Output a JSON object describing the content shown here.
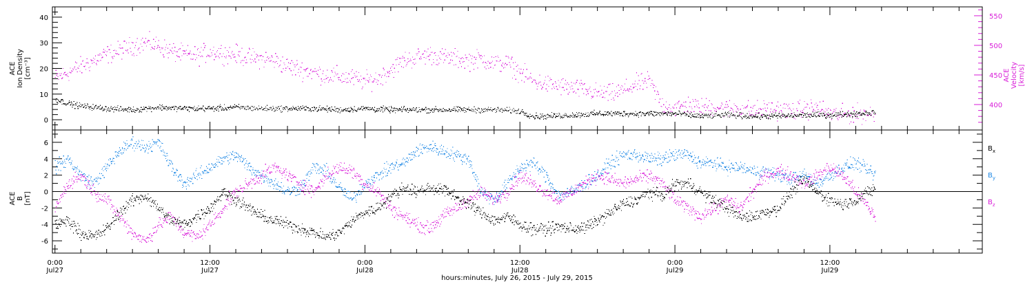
{
  "xaxis": {
    "title": "hours:minutes, July 26, 2015 - July 29, 2015",
    "ticks": [
      {
        "h": 0,
        "time": "0:00",
        "day": "Jul27"
      },
      {
        "h": 12,
        "time": "12:00",
        "day": "Jul27"
      },
      {
        "h": 24,
        "time": "0:00",
        "day": "Jul28"
      },
      {
        "h": 36,
        "time": "12:00",
        "day": "Jul28"
      },
      {
        "h": 48,
        "time": "0:00",
        "day": "Jul29"
      },
      {
        "h": 60,
        "time": "12:00",
        "day": "Jul29"
      }
    ]
  },
  "colors": {
    "black": "#000000",
    "magenta": "#d81ad8",
    "blue": "#1e88e5"
  },
  "chart_data": [
    {
      "type": "scatter",
      "panel": "top",
      "xlabel": "hours:minutes, July 26, 2015 - July 29, 2015",
      "xlim": [
        -0.2,
        71.8
      ],
      "ylabel_left": [
        "ACE",
        "Ion Density",
        "[cm⁻³]"
      ],
      "ylim_left": [
        -4,
        44
      ],
      "yticks_left": [
        0,
        10,
        20,
        30,
        40
      ],
      "ylabel_right": [
        "ACE",
        "Velocity",
        "[km/s]"
      ],
      "ylim_right": [
        357,
        565
      ],
      "yticks_right": [
        400,
        450,
        500,
        550
      ],
      "series": [
        {
          "axis": "left",
          "color": "#000000",
          "x": [
            0,
            1,
            2,
            4,
            6,
            7,
            8,
            10,
            12,
            14,
            16,
            18,
            20,
            22,
            24,
            26,
            28,
            30,
            32,
            34,
            36,
            37,
            38,
            40,
            42,
            44,
            46,
            48,
            50,
            52,
            54,
            56,
            58,
            60,
            62,
            63.5
          ],
          "y": [
            8,
            6.5,
            5.5,
            4.5,
            4,
            4.5,
            5,
            4.5,
            4.5,
            5,
            4.5,
            4.5,
            4.5,
            4,
            4.5,
            4,
            4,
            4,
            4,
            4,
            3.5,
            1.5,
            1.5,
            2,
            2.5,
            2.5,
            2.5,
            2.5,
            1.5,
            2,
            1.5,
            1.5,
            2,
            2,
            2.5,
            3
          ]
        },
        {
          "axis": "right",
          "color": "#d81ad8",
          "x": [
            0,
            1,
            2,
            3,
            4,
            5,
            6,
            7,
            8,
            9,
            10,
            11,
            12,
            13,
            14,
            15,
            16,
            17,
            18,
            19,
            20,
            21,
            22,
            23,
            24,
            25,
            26,
            27,
            28,
            29,
            30,
            31,
            32,
            33,
            34,
            35,
            36,
            37,
            38,
            39,
            40,
            41,
            42,
            43,
            44,
            45,
            46,
            47,
            48,
            49,
            50,
            51,
            52,
            53,
            54,
            55,
            56,
            57,
            58,
            59,
            60,
            61,
            62,
            63,
            63.5
          ],
          "y": [
            445,
            455,
            465,
            475,
            485,
            492,
            500,
            505,
            500,
            490,
            485,
            483,
            490,
            488,
            485,
            480,
            478,
            475,
            465,
            460,
            455,
            450,
            448,
            445,
            440,
            445,
            460,
            475,
            480,
            485,
            480,
            478,
            475,
            478,
            470,
            470,
            455,
            440,
            435,
            432,
            428,
            425,
            420,
            418,
            425,
            435,
            440,
            400,
            395,
            400,
            395,
            398,
            393,
            395,
            390,
            393,
            392,
            390,
            392,
            395,
            385,
            383,
            385,
            385,
            385
          ]
        }
      ]
    },
    {
      "type": "scatter",
      "panel": "bottom",
      "xlabel": "hours:minutes, July 26, 2015 - July 29, 2015",
      "xlim": [
        -0.2,
        71.8
      ],
      "ylabel": [
        "ACE",
        "B",
        "[nT]"
      ],
      "ylim": [
        -7.5,
        7.5
      ],
      "yticks": [
        -6,
        -4,
        -2,
        0,
        2,
        4,
        6
      ],
      "zero_line": true,
      "series": [
        {
          "name": "Bx",
          "sub": "x",
          "color": "#000000",
          "x": [
            0,
            1,
            2,
            3,
            4,
            5,
            6,
            7,
            8,
            9,
            10,
            11,
            12,
            13,
            14,
            15,
            16,
            17,
            18,
            19,
            20,
            21,
            22,
            23,
            24,
            25,
            26,
            27,
            28,
            29,
            30,
            31,
            32,
            33,
            34,
            35,
            36,
            37,
            38,
            39,
            40,
            41,
            42,
            43,
            44,
            45,
            46,
            47,
            48,
            49,
            50,
            51,
            52,
            53,
            54,
            55,
            56,
            57,
            58,
            59,
            60,
            61,
            62,
            63,
            63.5
          ],
          "y": [
            -4,
            -3.5,
            -5,
            -5.5,
            -4.5,
            -2.5,
            -1,
            -0.5,
            -2,
            -3.5,
            -4,
            -3,
            -2,
            0,
            -1,
            -2,
            -3,
            -3.5,
            -4,
            -4.5,
            -5,
            -5.5,
            -5,
            -3.5,
            -2.5,
            -2,
            -0.5,
            0.5,
            0,
            0.5,
            0.3,
            -0.5,
            -1.5,
            -2.5,
            -3.5,
            -3,
            -4,
            -4.5,
            -4.5,
            -4.3,
            -4.5,
            -4.4,
            -3.5,
            -2.5,
            -1.5,
            -1,
            0,
            -0.5,
            1,
            1,
            0,
            -1,
            -2,
            -3,
            -3,
            -2.5,
            -2,
            0,
            1.5,
            0,
            -1,
            -1.5,
            -1,
            0,
            0.5
          ]
        },
        {
          "name": "By",
          "sub": "y",
          "color": "#1e88e5",
          "x": [
            0,
            1,
            2,
            3,
            4,
            5,
            6,
            7,
            8,
            9,
            10,
            11,
            12,
            13,
            14,
            15,
            16,
            17,
            18,
            19,
            20,
            21,
            22,
            23,
            24,
            25,
            26,
            27,
            28,
            29,
            30,
            31,
            32,
            33,
            34,
            35,
            36,
            37,
            38,
            39,
            40,
            41,
            42,
            43,
            44,
            45,
            46,
            47,
            48,
            49,
            50,
            51,
            52,
            53,
            54,
            55,
            56,
            57,
            58,
            59,
            60,
            61,
            62,
            63,
            63.5
          ],
          "y": [
            3,
            4,
            2,
            1,
            3,
            5,
            6,
            5.5,
            6,
            3,
            1,
            2,
            3,
            4,
            4.5,
            3,
            2,
            1,
            0,
            0.5,
            3,
            2.5,
            0.5,
            -1,
            1,
            2,
            3,
            3.5,
            5,
            5.5,
            5,
            4.5,
            4,
            0,
            -1,
            1,
            3,
            3.5,
            2,
            -0.5,
            0,
            1,
            2,
            3.5,
            4.5,
            4.5,
            4,
            4,
            4.5,
            4.5,
            3.5,
            3.5,
            3,
            3,
            2.5,
            2.5,
            2,
            1.5,
            2,
            1,
            2,
            3,
            3.5,
            2.5,
            2
          ]
        },
        {
          "name": "Bz",
          "sub": "z",
          "color": "#d81ad8",
          "x": [
            0,
            1,
            2,
            3,
            4,
            5,
            6,
            7,
            8,
            9,
            10,
            11,
            12,
            13,
            14,
            15,
            16,
            17,
            18,
            19,
            20,
            21,
            22,
            23,
            24,
            25,
            26,
            27,
            28,
            29,
            30,
            31,
            32,
            33,
            34,
            35,
            36,
            37,
            38,
            39,
            40,
            41,
            42,
            43,
            44,
            45,
            46,
            47,
            48,
            49,
            50,
            51,
            52,
            53,
            54,
            55,
            56,
            57,
            58,
            59,
            60,
            61,
            62,
            63,
            63.5
          ],
          "y": [
            -2,
            1,
            2,
            0,
            -1,
            -3,
            -5,
            -6,
            -4,
            -3,
            -5,
            -5.5,
            -4,
            -2,
            0,
            1,
            2,
            3,
            2,
            1,
            0,
            2,
            3,
            2.5,
            1,
            0,
            -2,
            -3,
            -4,
            -4.5,
            -3,
            -2,
            -1,
            0,
            -1,
            0,
            2,
            1,
            0,
            -1,
            0,
            1,
            2,
            1.5,
            1,
            1.5,
            2,
            1,
            -1,
            -2,
            -3,
            -2,
            -1,
            -2,
            0,
            2,
            2.5,
            2,
            1,
            2,
            3,
            2,
            0,
            -2,
            -3
          ]
        }
      ]
    }
  ]
}
